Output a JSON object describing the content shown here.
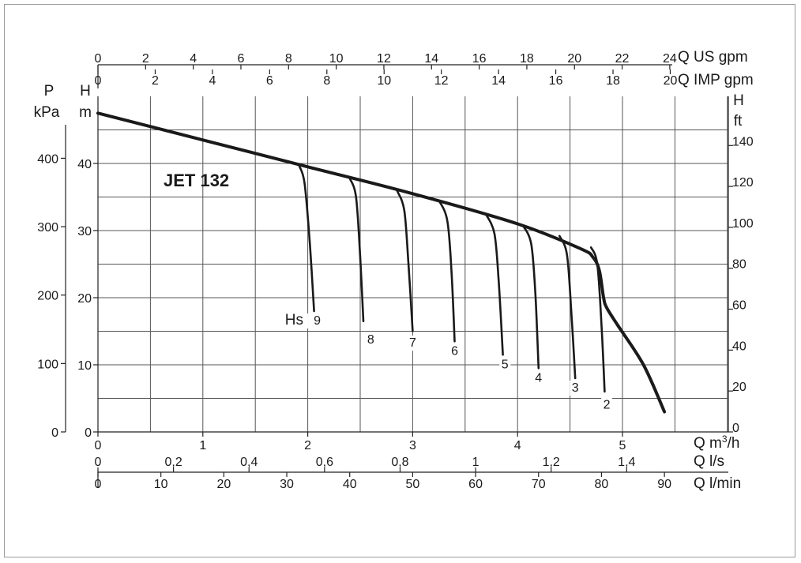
{
  "chart_data": {
    "type": "line",
    "title": "JET 132",
    "x_axes": [
      {
        "name": "Q m3/h",
        "label": "Q m",
        "sup": "3",
        "suffix": "/h",
        "ticks": [
          0,
          1,
          2,
          3,
          4,
          5
        ],
        "tick_labels": [
          "0",
          "1",
          "2",
          "3",
          "4",
          "5"
        ]
      },
      {
        "name": "Q l/s",
        "label": "Q l/s",
        "ticks": [
          0,
          0.2,
          0.4,
          0.6,
          0.8,
          1,
          1.2,
          1.4
        ],
        "tick_labels": [
          "0",
          "0,2",
          "0,4",
          "0,6",
          "0,8",
          "1",
          "1,2",
          "1,4"
        ]
      },
      {
        "name": "Q l/min",
        "label": "Q l/min",
        "ticks": [
          0,
          10,
          20,
          30,
          40,
          50,
          60,
          70,
          80,
          90
        ],
        "tick_labels": [
          "0",
          "10",
          "20",
          "30",
          "40",
          "50",
          "60",
          "70",
          "80",
          "90"
        ]
      },
      {
        "name": "Q US gpm",
        "label": "Q US gpm",
        "ticks": [
          0,
          2,
          4,
          6,
          8,
          10,
          12,
          14,
          16,
          18,
          20,
          22,
          24
        ],
        "tick_labels": [
          "0",
          "2",
          "4",
          "6",
          "8",
          "10",
          "12",
          "14",
          "16",
          "18",
          "20",
          "22",
          "24"
        ]
      },
      {
        "name": "Q IMP gpm",
        "label": "Q IMP gpm",
        "ticks": [
          0,
          2,
          4,
          6,
          8,
          10,
          12,
          14,
          16,
          18,
          20
        ],
        "tick_labels": [
          "0",
          "2",
          "4",
          "6",
          "8",
          "10",
          "12",
          "14",
          "16",
          "18",
          "20"
        ]
      }
    ],
    "y_axes": [
      {
        "name": "H m",
        "label_top": "H",
        "label_bottom": "m",
        "ticks": [
          0,
          10,
          20,
          30,
          40
        ],
        "tick_labels": [
          "0",
          "10",
          "20",
          "30",
          "40"
        ]
      },
      {
        "name": "P kPa",
        "label_top": "P",
        "label_bottom": "kPa",
        "ticks": [
          0,
          100,
          200,
          300,
          400
        ],
        "tick_labels": [
          "0",
          "100",
          "200",
          "300",
          "400"
        ]
      },
      {
        "name": "H ft",
        "label_top": "H",
        "label_bottom": "ft",
        "ticks": [
          0,
          20,
          40,
          60,
          80,
          100,
          120,
          140
        ],
        "tick_labels": [
          "0",
          "20",
          "40",
          "60",
          "80",
          "100",
          "120",
          "140"
        ]
      }
    ],
    "xlim": [
      0,
      6
    ],
    "ylim": [
      0,
      48
    ],
    "grid": true,
    "main_curve": {
      "name": "JET 132",
      "x": [
        0,
        1,
        2,
        3,
        4,
        4.6,
        4.72,
        4.78,
        4.82,
        4.85,
        4.95,
        5.2,
        5.4
      ],
      "y": [
        47.5,
        43.5,
        39.5,
        35.5,
        31.0,
        27.3,
        26.0,
        24.0,
        20.0,
        18.5,
        16.0,
        10.0,
        3.0
      ]
    },
    "series": [
      {
        "name": "9",
        "x": [
          1.92,
          1.97,
          2.02,
          2.06
        ],
        "y": [
          39.6,
          37.0,
          28.0,
          18.0
        ]
      },
      {
        "name": "8",
        "x": [
          2.4,
          2.46,
          2.5,
          2.53
        ],
        "y": [
          37.8,
          35.0,
          26.0,
          16.5
        ]
      },
      {
        "name": "7",
        "x": [
          2.85,
          2.92,
          2.96,
          3.0
        ],
        "y": [
          36.0,
          33.0,
          25.0,
          15.0
        ]
      },
      {
        "name": "6",
        "x": [
          3.25,
          3.33,
          3.37,
          3.4
        ],
        "y": [
          34.5,
          31.5,
          24.0,
          13.5
        ]
      },
      {
        "name": "5",
        "x": [
          3.7,
          3.78,
          3.82,
          3.86
        ],
        "y": [
          32.4,
          29.5,
          22.5,
          11.5
        ]
      },
      {
        "name": "4",
        "x": [
          4.05,
          4.13,
          4.17,
          4.2
        ],
        "y": [
          30.8,
          28.0,
          20.5,
          9.5
        ]
      },
      {
        "name": "3",
        "x": [
          4.4,
          4.47,
          4.51,
          4.55
        ],
        "y": [
          29.2,
          26.5,
          18.5,
          8.0
        ]
      },
      {
        "name": "2",
        "x": [
          4.7,
          4.76,
          4.8,
          4.83
        ],
        "y": [
          27.5,
          25.0,
          16.0,
          6.0
        ]
      }
    ],
    "curve_labels": [
      {
        "text": "Hs",
        "x": 1.87,
        "y": 16.0
      },
      {
        "text": "9",
        "x": 2.09,
        "y": 16.0
      },
      {
        "text": "8",
        "x": 2.6,
        "y": 13.2
      },
      {
        "text": "7",
        "x": 3.0,
        "y": 12.7
      },
      {
        "text": "6",
        "x": 3.4,
        "y": 11.5
      },
      {
        "text": "5",
        "x": 3.88,
        "y": 9.5
      },
      {
        "text": "4",
        "x": 4.2,
        "y": 7.5
      },
      {
        "text": "3",
        "x": 4.55,
        "y": 6.0
      },
      {
        "text": "2",
        "x": 4.85,
        "y": 3.5
      }
    ]
  }
}
